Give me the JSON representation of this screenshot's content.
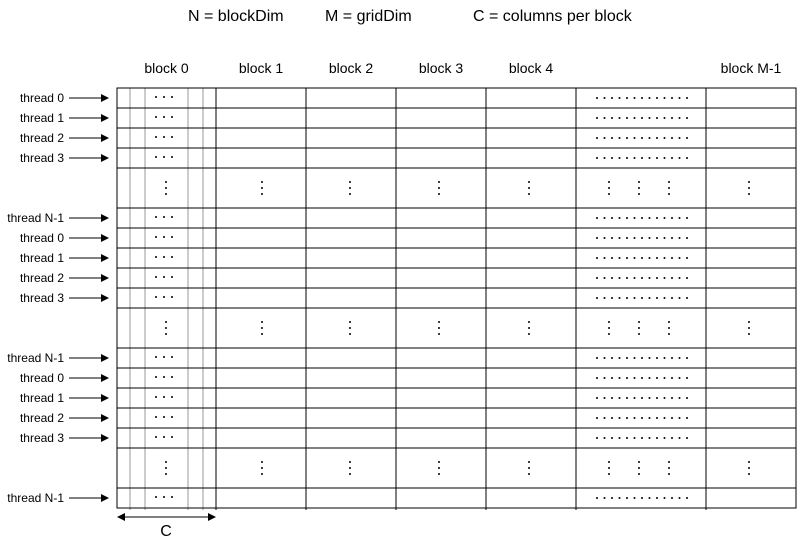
{
  "legend": {
    "n_def": "N = blockDim",
    "m_def": "M = gridDim",
    "c_def": "C = columns per block"
  },
  "blocks": [
    "block 0",
    "block 1",
    "block 2",
    "block 3",
    "block 4",
    "",
    "block M-1"
  ],
  "thread_groups": [
    {
      "rows": [
        "thread 0",
        "thread 1",
        "thread 2",
        "thread 3",
        "",
        "thread N-1"
      ]
    },
    {
      "rows": [
        "thread 0",
        "thread 1",
        "thread 2",
        "thread 3",
        "",
        "thread N-1"
      ]
    },
    {
      "rows": [
        "thread 0",
        "thread 1",
        "thread 2",
        "thread 3",
        "",
        "thread N-1"
      ]
    }
  ],
  "c_label": "C"
}
